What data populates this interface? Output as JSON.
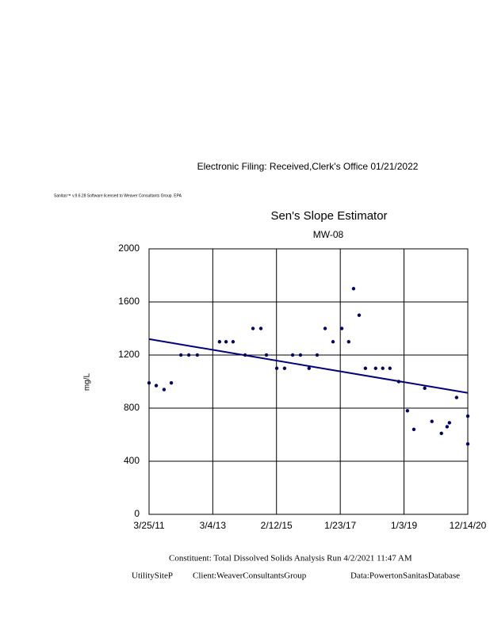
{
  "header": {
    "filing": "Electronic Filing: Received,Clerk's Office 01/21/2022",
    "license": "Sanitas™ v.9.6.28 Software licensed to Weaver Consultants Group. EPA"
  },
  "footer": {
    "analysis": "Constituent: Total Dissolved Solids Analysis Run 4/2/2021 11:47 AM",
    "site": "UtilitySiteP",
    "client": "Client:WeaverConsultantsGroup",
    "database": "Data:PowertonSanitasDatabase"
  },
  "chart_data": {
    "type": "scatter",
    "title": "Sen's Slope Estimator",
    "subtitle": "MW-08",
    "y_label": "mg/L",
    "x": [
      "2011-03-25",
      "2011-06-13",
      "2011-09-08",
      "2011-11-28",
      "2012-03-14",
      "2012-06-10",
      "2012-09-13",
      "2013-05-18",
      "2013-07-30",
      "2013-10-16",
      "2014-02-27",
      "2014-05-26",
      "2014-08-22",
      "2014-10-23",
      "2015-02-15",
      "2015-05-13",
      "2015-08-11",
      "2015-11-06",
      "2016-02-10",
      "2016-05-10",
      "2016-08-07",
      "2016-11-03",
      "2017-02-09",
      "2017-04-27",
      "2017-06-20",
      "2017-08-21",
      "2017-10-30",
      "2018-02-21",
      "2018-05-11",
      "2018-07-30",
      "2018-11-05",
      "2019-02-10",
      "2019-04-23",
      "2019-08-22",
      "2019-11-10",
      "2020-02-24",
      "2020-04-27",
      "2020-05-23",
      "2020-08-11",
      "2020-12-14",
      "2020-12-14"
    ],
    "values": [
      990,
      970,
      940,
      990,
      1200,
      1200,
      1200,
      1300,
      1300,
      1300,
      1200,
      1400,
      1400,
      1200,
      1100,
      1100,
      1200,
      1200,
      1100,
      1200,
      1400,
      1300,
      1400,
      1300,
      1700,
      1500,
      1100,
      1100,
      1100,
      1100,
      1000,
      780,
      640,
      950,
      700,
      610,
      660,
      690,
      880,
      740,
      530
    ],
    "color": "#000066",
    "trend": {
      "x": [
        "2011-03-25",
        "2020-12-14"
      ],
      "values": [
        1320,
        915
      ],
      "color": "#000080"
    },
    "xlim": [
      "2011-03-25",
      "2020-12-14"
    ],
    "xticks": [
      {
        "value": "2011-03-25",
        "label": "3/25/11"
      },
      {
        "value": "2013-03-04",
        "label": "3/4/13"
      },
      {
        "value": "2015-02-12",
        "label": "2/12/15"
      },
      {
        "value": "2017-01-23",
        "label": "1/23/17"
      },
      {
        "value": "2019-01-03",
        "label": "1/3/19"
      },
      {
        "value": "2020-12-14",
        "label": "12/14/20"
      }
    ],
    "ylim": [
      0,
      2000
    ],
    "yticks": [
      0,
      400,
      800,
      1200,
      1600,
      2000
    ],
    "grid": true
  }
}
